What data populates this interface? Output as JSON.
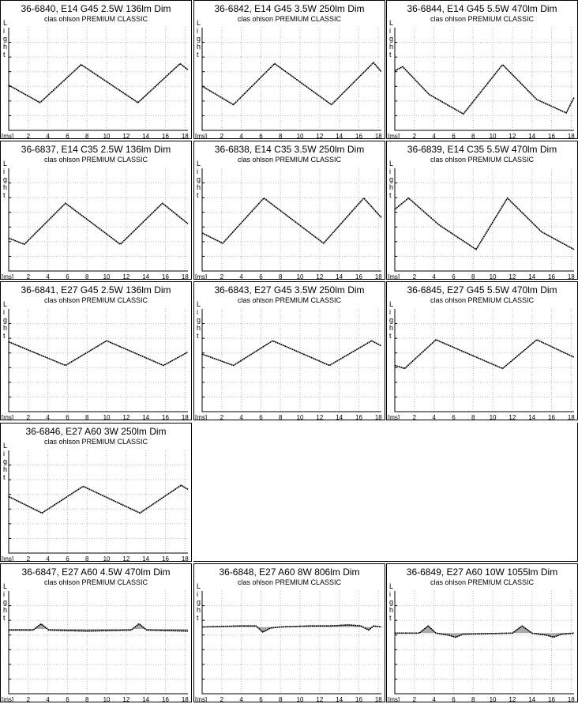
{
  "common": {
    "ylabel": "Light",
    "xunit": "[ms]",
    "xticks": [
      2,
      4,
      6,
      8,
      10,
      12,
      14,
      16,
      18
    ],
    "subtitle": "clas ohlson PREMIUM CLASSIC",
    "trace_color": "#000000",
    "fill_color": "#aaaaaa"
  },
  "chart_data": [
    {
      "type": "line",
      "title": "36-6840, E14 G45 2.5W 136lm Dim",
      "subtitle": "clas ohlson PREMIUM CLASSIC",
      "xlabel": "[ms]",
      "ylabel": "Light",
      "xlim": [
        0,
        18.3
      ],
      "ylim": [
        0,
        1
      ],
      "grid": true,
      "shade": false,
      "series": [
        {
          "x": [
            0,
            3.2,
            7.4,
            13.2,
            17.5,
            18.3
          ],
          "y": [
            0.44,
            0.27,
            0.64,
            0.27,
            0.65,
            0.59
          ]
        }
      ]
    },
    {
      "type": "line",
      "title": "36-6842, E14 G45 3.5W 250lm Dim",
      "subtitle": "clas ohlson PREMIUM CLASSIC",
      "xlabel": "[ms]",
      "ylabel": "Light",
      "xlim": [
        0,
        18.3
      ],
      "ylim": [
        0,
        1
      ],
      "grid": true,
      "shade": false,
      "series": [
        {
          "x": [
            0,
            3.2,
            7.4,
            13.2,
            17.5,
            18.3
          ],
          "y": [
            0.43,
            0.25,
            0.65,
            0.25,
            0.66,
            0.57
          ]
        }
      ]
    },
    {
      "type": "line",
      "title": "36-6844, E14 G45 5.5W 470lm Dim",
      "subtitle": "clas ohlson PREMIUM CLASSIC",
      "xlabel": "[ms]",
      "ylabel": "Light",
      "xlim": [
        0,
        18.3
      ],
      "ylim": [
        0,
        1
      ],
      "grid": true,
      "shade": false,
      "series": [
        {
          "x": [
            0,
            0.8,
            3.5,
            7.0,
            11.0,
            14.5,
            17.5,
            18.3
          ],
          "y": [
            0.58,
            0.62,
            0.35,
            0.16,
            0.64,
            0.3,
            0.17,
            0.32
          ]
        }
      ]
    },
    {
      "type": "line",
      "title": "36-6837, E14 C35 2.5W 136lm Dim",
      "subtitle": "clas ohlson PREMIUM CLASSIC",
      "xlabel": "[ms]",
      "ylabel": "Light",
      "xlim": [
        0,
        18.3
      ],
      "ylim": [
        0,
        1
      ],
      "grid": true,
      "shade": false,
      "series": [
        {
          "x": [
            0,
            1.6,
            5.8,
            11.4,
            15.7,
            18.3
          ],
          "y": [
            0.32,
            0.26,
            0.66,
            0.26,
            0.66,
            0.46
          ]
        }
      ]
    },
    {
      "type": "line",
      "title": "36-6838, E14 C35 3.5W 250lm Dim",
      "subtitle": "clas ohlson PREMIUM CLASSIC",
      "xlabel": "[ms]",
      "ylabel": "Light",
      "xlim": [
        0,
        18.3
      ],
      "ylim": [
        0,
        1
      ],
      "grid": true,
      "shade": false,
      "series": [
        {
          "x": [
            0,
            2.1,
            6.3,
            12.4,
            16.5,
            18.3
          ],
          "y": [
            0.37,
            0.27,
            0.71,
            0.27,
            0.71,
            0.52
          ]
        }
      ]
    },
    {
      "type": "line",
      "title": "36-6839, E14 C35 5.5W 470lm Dim",
      "subtitle": "clas ohlson PREMIUM CLASSIC",
      "xlabel": "[ms]",
      "ylabel": "Light",
      "xlim": [
        0,
        18.3
      ],
      "ylim": [
        0,
        1
      ],
      "grid": true,
      "shade": false,
      "series": [
        {
          "x": [
            0,
            1.4,
            4.5,
            8.3,
            11.5,
            15.0,
            18.3
          ],
          "y": [
            0.6,
            0.71,
            0.45,
            0.21,
            0.71,
            0.38,
            0.21
          ]
        }
      ]
    },
    {
      "type": "line",
      "title": "36-6841, E27 G45 2.5W 136lm Dim",
      "subtitle": "clas ohlson PREMIUM CLASSIC",
      "xlabel": "[ms]",
      "ylabel": "Light",
      "xlim": [
        0,
        18.3
      ],
      "ylim": [
        0,
        1
      ],
      "grid": true,
      "shade": false,
      "series": [
        {
          "x": [
            0,
            5.8,
            10.0,
            15.8,
            18.3
          ],
          "y": [
            0.68,
            0.45,
            0.69,
            0.45,
            0.58
          ]
        }
      ]
    },
    {
      "type": "line",
      "title": "36-6843, E27 G45 3.5W 250lm Dim",
      "subtitle": "clas ohlson PREMIUM CLASSIC",
      "xlabel": "[ms]",
      "ylabel": "Light",
      "xlim": [
        0,
        18.3
      ],
      "ylim": [
        0,
        1
      ],
      "grid": true,
      "shade": false,
      "series": [
        {
          "x": [
            0,
            3.2,
            7.2,
            13.0,
            17.3,
            18.3
          ],
          "y": [
            0.56,
            0.45,
            0.69,
            0.45,
            0.69,
            0.64
          ]
        }
      ]
    },
    {
      "type": "line",
      "title": "36-6845, E27 G45 5.5W 470lm Dim",
      "subtitle": "clas ohlson PREMIUM CLASSIC",
      "xlabel": "[ms]",
      "ylabel": "Light",
      "xlim": [
        0,
        18.3
      ],
      "ylim": [
        0,
        1
      ],
      "grid": true,
      "shade": false,
      "series": [
        {
          "x": [
            0,
            1.0,
            4.2,
            11.0,
            14.5,
            18.3
          ],
          "y": [
            0.45,
            0.42,
            0.7,
            0.42,
            0.7,
            0.53
          ]
        }
      ]
    },
    {
      "type": "line",
      "title": "36-6846, E27 A60 3W 250lm Dim",
      "subtitle": "clas ohlson PREMIUM CLASSIC",
      "xlabel": "[ms]",
      "ylabel": "Light",
      "xlim": [
        0,
        18.3
      ],
      "ylim": [
        0,
        1
      ],
      "grid": true,
      "shade": false,
      "series": [
        {
          "x": [
            0,
            3.4,
            7.6,
            13.4,
            17.6,
            18.3
          ],
          "y": [
            0.55,
            0.39,
            0.65,
            0.39,
            0.66,
            0.62
          ]
        }
      ]
    },
    {
      "type": "line",
      "title": "36-6847, E27 A60 4.5W 470lm Dim",
      "subtitle": "clas ohlson PREMIUM CLASSIC",
      "xlabel": "[ms]",
      "ylabel": "Light",
      "xlim": [
        0,
        18.3
      ],
      "ylim": [
        0,
        1
      ],
      "grid": true,
      "shade": true,
      "series": [
        {
          "x": [
            0,
            2.5,
            3.3,
            4.1,
            8,
            12.5,
            13.3,
            14.1,
            18.3
          ],
          "y": [
            0.62,
            0.62,
            0.68,
            0.62,
            0.61,
            0.62,
            0.68,
            0.62,
            0.61
          ]
        }
      ]
    },
    {
      "type": "line",
      "title": "36-6848, E27 A60 8W 806lm Dim",
      "subtitle": "clas ohlson PREMIUM CLASSIC",
      "xlabel": "[ms]",
      "ylabel": "Light",
      "xlim": [
        0,
        18.3
      ],
      "ylim": [
        0,
        1
      ],
      "grid": true,
      "shade": true,
      "series": [
        {
          "x": [
            0,
            4,
            5.5,
            6.2,
            7,
            8,
            11,
            13,
            15,
            16.2,
            17,
            17.5,
            18.3
          ],
          "y": [
            0.65,
            0.66,
            0.66,
            0.6,
            0.64,
            0.65,
            0.66,
            0.66,
            0.67,
            0.66,
            0.62,
            0.66,
            0.65
          ]
        }
      ]
    },
    {
      "type": "line",
      "title": "36-6849, E27 A60 10W 1055lm Dim",
      "subtitle": "clas ohlson PREMIUM CLASSIC",
      "xlabel": "[ms]",
      "ylabel": "Light",
      "xlim": [
        0,
        18.3
      ],
      "ylim": [
        0,
        1
      ],
      "grid": true,
      "shade": true,
      "series": [
        {
          "x": [
            0,
            2.5,
            3.4,
            4.2,
            5.5,
            6.2,
            7.0,
            12.0,
            13.0,
            14.0,
            15.5,
            16.2,
            17.0,
            18.3
          ],
          "y": [
            0.59,
            0.59,
            0.66,
            0.59,
            0.57,
            0.55,
            0.58,
            0.59,
            0.66,
            0.59,
            0.57,
            0.55,
            0.58,
            0.59
          ]
        }
      ]
    }
  ]
}
